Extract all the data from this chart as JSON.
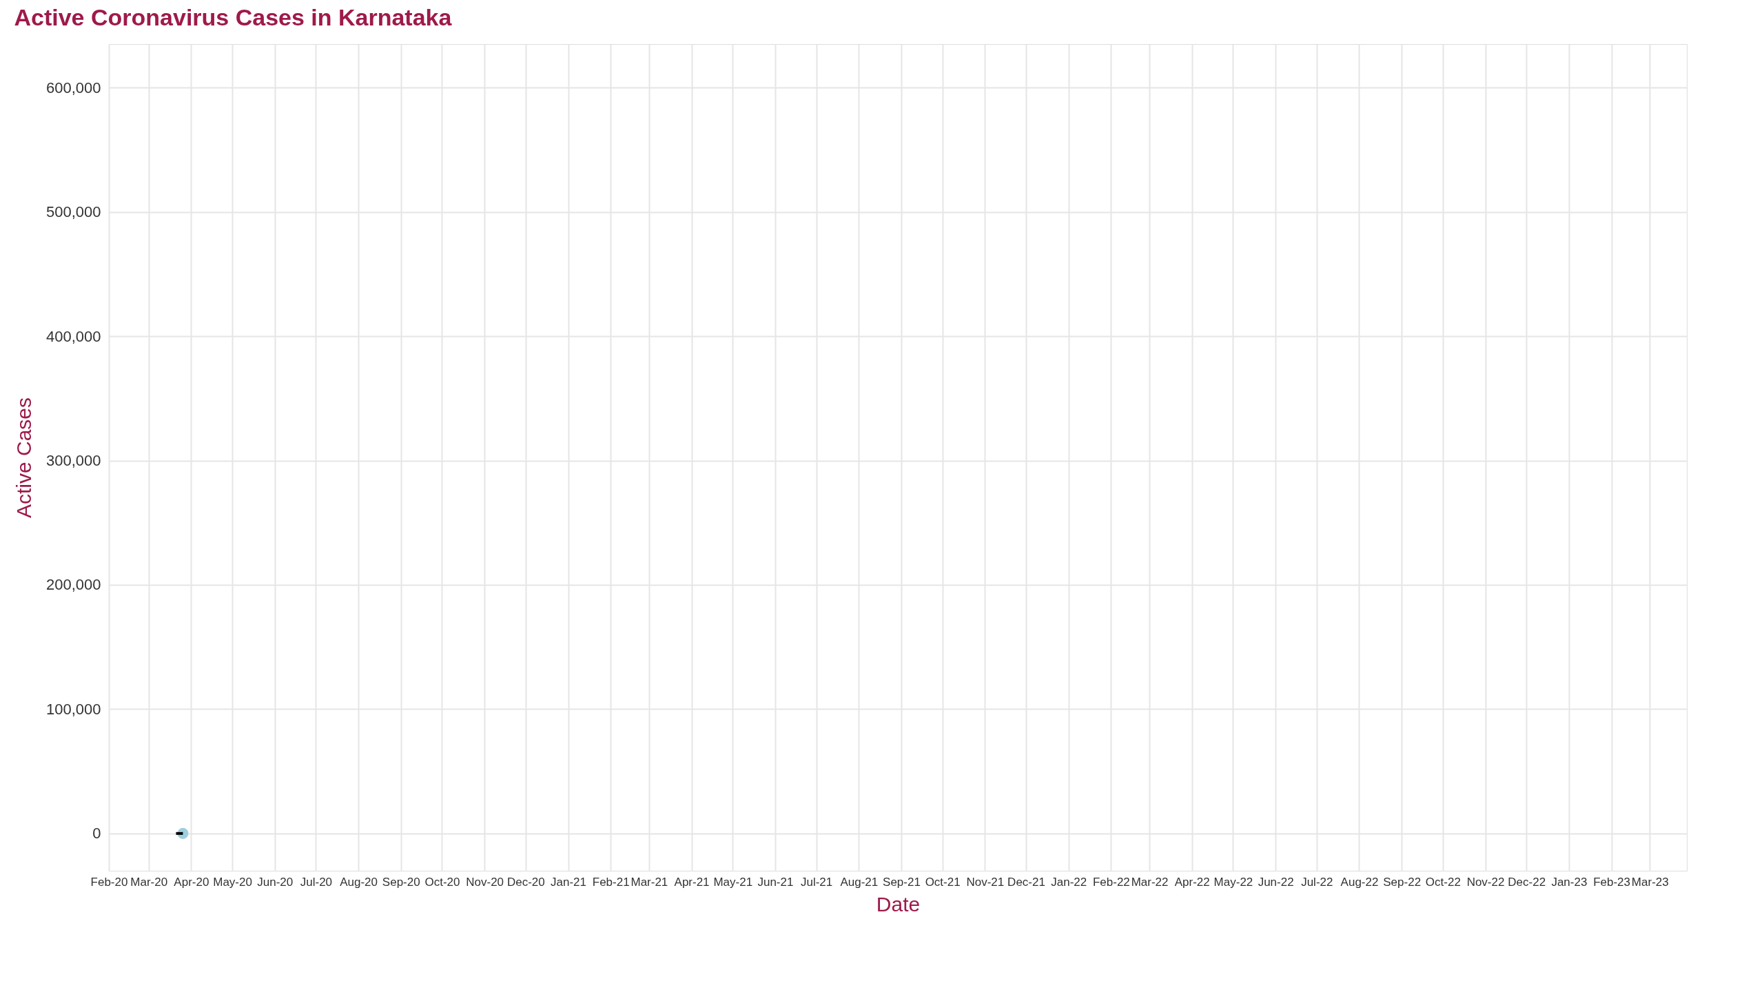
{
  "chart_data": {
    "type": "line",
    "title": "Active Coronavirus Cases in Karnataka",
    "xlabel": "Date",
    "ylabel": "Active Cases",
    "series": [
      {
        "type": "scatter",
        "color": "#9ecfe0",
        "x": [
          "2020-03-26"
        ],
        "values": [
          0
        ]
      },
      {
        "type": "line",
        "color": "#000000",
        "x": [
          "2020-03-21",
          "2020-03-26"
        ],
        "values": [
          0,
          0
        ]
      }
    ],
    "xlim": [
      "2020-02-01",
      "2023-03-28"
    ],
    "xticks": [
      {
        "value": "2020-02-01",
        "label": "Feb-20"
      },
      {
        "value": "2020-03-01",
        "label": "Mar-20"
      },
      {
        "value": "2020-04-01",
        "label": "Apr-20"
      },
      {
        "value": "2020-05-01",
        "label": "May-20"
      },
      {
        "value": "2020-06-01",
        "label": "Jun-20"
      },
      {
        "value": "2020-07-01",
        "label": "Jul-20"
      },
      {
        "value": "2020-08-01",
        "label": "Aug-20"
      },
      {
        "value": "2020-09-01",
        "label": "Sep-20"
      },
      {
        "value": "2020-10-01",
        "label": "Oct-20"
      },
      {
        "value": "2020-11-01",
        "label": "Nov-20"
      },
      {
        "value": "2020-12-01",
        "label": "Dec-20"
      },
      {
        "value": "2021-01-01",
        "label": "Jan-21"
      },
      {
        "value": "2021-02-01",
        "label": "Feb-21"
      },
      {
        "value": "2021-03-01",
        "label": "Mar-21"
      },
      {
        "value": "2021-04-01",
        "label": "Apr-21"
      },
      {
        "value": "2021-05-01",
        "label": "May-21"
      },
      {
        "value": "2021-06-01",
        "label": "Jun-21"
      },
      {
        "value": "2021-07-01",
        "label": "Jul-21"
      },
      {
        "value": "2021-08-01",
        "label": "Aug-21"
      },
      {
        "value": "2021-09-01",
        "label": "Sep-21"
      },
      {
        "value": "2021-10-01",
        "label": "Oct-21"
      },
      {
        "value": "2021-11-01",
        "label": "Nov-21"
      },
      {
        "value": "2021-12-01",
        "label": "Dec-21"
      },
      {
        "value": "2022-01-01",
        "label": "Jan-22"
      },
      {
        "value": "2022-02-01",
        "label": "Feb-22"
      },
      {
        "value": "2022-03-01",
        "label": "Mar-22"
      },
      {
        "value": "2022-04-01",
        "label": "Apr-22"
      },
      {
        "value": "2022-05-01",
        "label": "May-22"
      },
      {
        "value": "2022-06-01",
        "label": "Jun-22"
      },
      {
        "value": "2022-07-01",
        "label": "Jul-22"
      },
      {
        "value": "2022-08-01",
        "label": "Aug-22"
      },
      {
        "value": "2022-09-01",
        "label": "Sep-22"
      },
      {
        "value": "2022-10-01",
        "label": "Oct-22"
      },
      {
        "value": "2022-11-01",
        "label": "Nov-22"
      },
      {
        "value": "2022-12-01",
        "label": "Dec-22"
      },
      {
        "value": "2023-01-01",
        "label": "Jan-23"
      },
      {
        "value": "2023-02-01",
        "label": "Feb-23"
      },
      {
        "value": "2023-03-01",
        "label": "Mar-23"
      }
    ],
    "ylim": [
      -30000,
      635000
    ],
    "yticks": [
      {
        "value": 0,
        "label": "0"
      },
      {
        "value": 100000,
        "label": "100,000"
      },
      {
        "value": 200000,
        "label": "200,000"
      },
      {
        "value": 300000,
        "label": "300,000"
      },
      {
        "value": 400000,
        "label": "400,000"
      },
      {
        "value": 500000,
        "label": "500,000"
      },
      {
        "value": 600000,
        "label": "600,000"
      }
    ],
    "grid": true
  }
}
